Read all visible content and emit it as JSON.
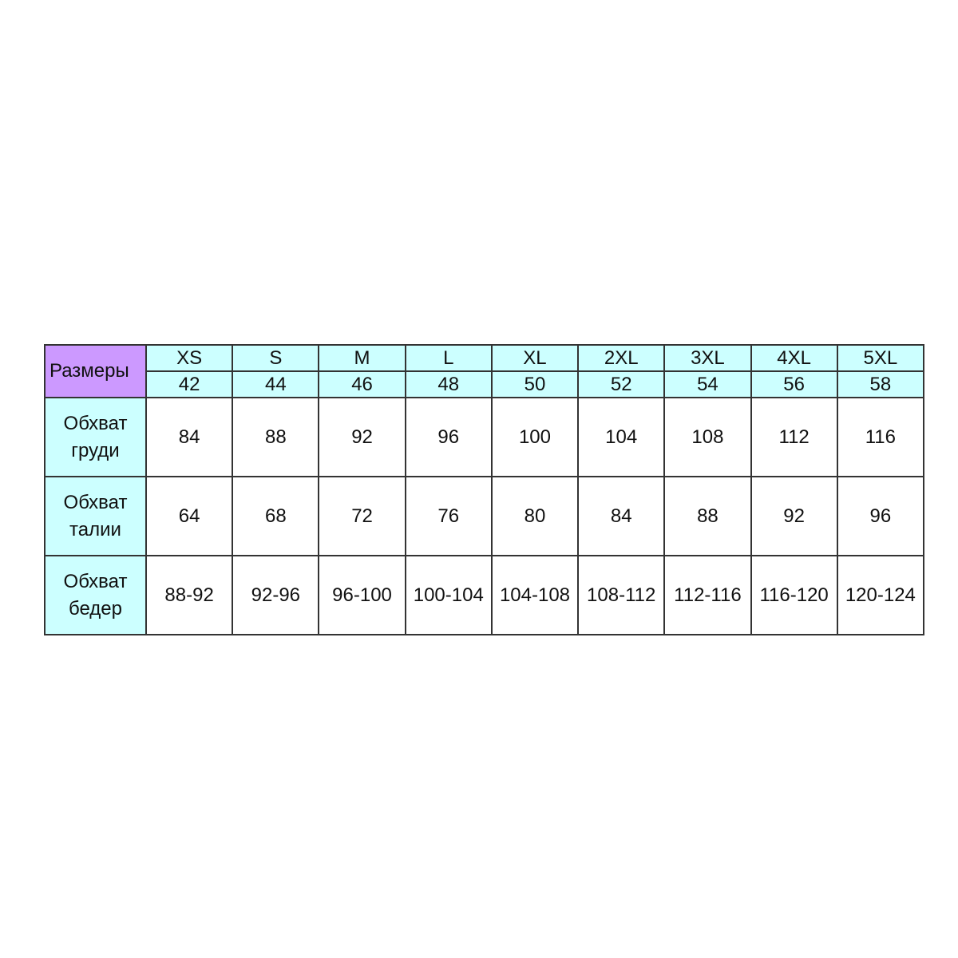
{
  "corner_label": "Размеры",
  "sizes": [
    "XS",
    "S",
    "M",
    "L",
    "XL",
    "2XL",
    "3XL",
    "4XL",
    "5XL"
  ],
  "ru_sizes": [
    "42",
    "44",
    "46",
    "48",
    "50",
    "52",
    "54",
    "56",
    "58"
  ],
  "rows": [
    {
      "label_line1": "Обхват",
      "label_line2": "груди",
      "values": [
        "84",
        "88",
        "92",
        "96",
        "100",
        "104",
        "108",
        "112",
        "116"
      ]
    },
    {
      "label_line1": "Обхват",
      "label_line2": "талии",
      "values": [
        "64",
        "68",
        "72",
        "76",
        "80",
        "84",
        "88",
        "92",
        "96"
      ]
    },
    {
      "label_line1": "Обхват",
      "label_line2": "бедер",
      "values": [
        "88-92",
        "92-96",
        "96-100",
        "100-104",
        "104-108",
        "108-112",
        "112-116",
        "116-120",
        "120-124"
      ]
    }
  ],
  "colors": {
    "corner": "#cc99ff",
    "header": "#ccffff",
    "border": "#333333"
  }
}
